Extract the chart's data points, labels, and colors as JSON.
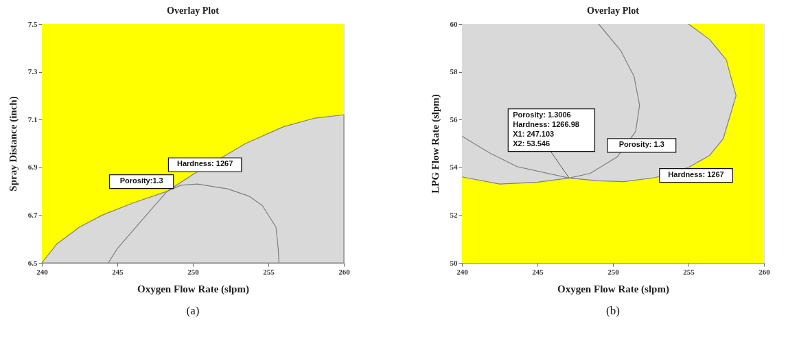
{
  "chart_data": [
    {
      "type": "line",
      "title": "Overlay Plot",
      "xlabel": "Oxygen Flow Rate (slpm)",
      "ylabel": "Spray Distance (inch)",
      "xlim": [
        240,
        260
      ],
      "ylim": [
        6.5,
        7.5
      ],
      "xticks": [
        240,
        245,
        250,
        255,
        260
      ],
      "yticks": [
        6.5,
        6.7,
        6.9,
        7.1,
        7.3,
        7.5
      ],
      "bands": [
        {
          "axis": "y",
          "from": 6.5,
          "to": 7.5,
          "color": "#ffff00"
        }
      ],
      "series": [
        {
          "type": "area",
          "color": "#d9d9d9",
          "x": [
            240,
            241,
            242.5,
            244,
            246,
            248.3,
            250,
            253.5,
            256,
            258,
            260
          ],
          "values": [
            6.5,
            6.58,
            6.65,
            6.7,
            6.75,
            6.8,
            6.87,
            7.0,
            7.07,
            7.105,
            7.12
          ]
        },
        {
          "color": "#7f7f7f",
          "x": [
            244.4,
            245,
            246.5,
            248.3,
            249.2,
            250.3,
            252.3,
            253.7,
            254.6,
            255.5,
            255.65,
            255.7
          ],
          "values": [
            6.5,
            6.56,
            6.67,
            6.8,
            6.825,
            6.83,
            6.81,
            6.78,
            6.74,
            6.65,
            6.56,
            6.5
          ]
        }
      ],
      "annotations": [
        "Hardness: 1267",
        "Porosity:1.3",
        "(a)"
      ]
    },
    {
      "type": "line",
      "title": "Overlay Plot",
      "xlabel": "Oxygen Flow Rate (slpm)",
      "ylabel": "LPG Flow Rate (slpm)",
      "xlim": [
        240,
        260
      ],
      "ylim": [
        50,
        60
      ],
      "xticks": [
        240,
        245,
        250,
        255,
        260
      ],
      "yticks": [
        50,
        52,
        54,
        56,
        58,
        60
      ],
      "bands": [
        {
          "axis": "y",
          "from": 50,
          "to": 60,
          "color": "#ffff00"
        }
      ],
      "series": [
        {
          "color": "#d9d9d9",
          "x": [
            240,
            242.5,
            245,
            247.1,
            249,
            250.7,
            252.8,
            255,
            256.4,
            257.3,
            258.15
          ],
          "values": [
            53.6,
            53.3,
            53.38,
            53.55,
            53.44,
            53.4,
            53.57,
            54.0,
            54.5,
            55.2,
            57.0
          ],
          "lower": [
            53.6,
            53.3,
            53.38,
            53.55,
            53.44,
            53.4,
            53.57,
            54.0,
            54.5,
            55.2,
            57.0
          ],
          "upper": [
            60,
            60,
            60,
            60,
            60,
            60,
            60,
            60,
            59.35,
            58.7,
            57.0
          ]
        },
        {
          "color": "#7f7f7f",
          "x": [
            240,
            241.85,
            243.65,
            247.1,
            249,
            250.7,
            252.8,
            255,
            256.4,
            257.3,
            258.15,
            257.5,
            256.4,
            255
          ],
          "values": [
            55.3,
            54.6,
            54.03,
            53.55,
            53.44,
            53.4,
            53.57,
            54.0,
            54.5,
            55.2,
            57.0,
            58.5,
            59.35,
            60
          ]
        },
        {
          "color": "#7f7f7f",
          "x": [
            240,
            242.5,
            245,
            247.1,
            248.5,
            250.3,
            251.5,
            251.76,
            251.4,
            250.5,
            249.05
          ],
          "values": [
            53.6,
            53.3,
            53.38,
            53.55,
            53.75,
            54.45,
            55.5,
            56.6,
            57.8,
            58.9,
            60
          ]
        }
      ],
      "annotations": [
        {
          "text": "Porosity: 1.3006\nHardness: 1266.98\nX1: 247.103\nX2: 53.546",
          "x": 247.103,
          "y": 53.546
        },
        "Porosity: 1.3",
        "Hardness: 1267",
        "(b)"
      ]
    }
  ]
}
